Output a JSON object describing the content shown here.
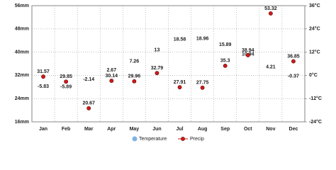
{
  "chart_data": {
    "type": "climate",
    "categories": [
      "Jan",
      "Feb",
      "Mar",
      "Apr",
      "May",
      "Jun",
      "Jul",
      "Aug",
      "Sep",
      "Oct",
      "Nov",
      "Dec"
    ],
    "series": [
      {
        "name": "Temperature",
        "color": "#7fb2e5",
        "axis": "y2",
        "values": [
          -5.83,
          -5.89,
          -2.14,
          2.67,
          7.26,
          13,
          18.58,
          18.96,
          15.89,
          10.94,
          4.21,
          -0.37
        ]
      },
      {
        "name": "Precip",
        "color": "#d11a1a",
        "values": [
          31.57,
          29.85,
          20.67,
          30.14,
          29.96,
          32.79,
          27.91,
          27.75,
          35.3,
          38.94,
          53.32,
          36.85
        ]
      }
    ],
    "ylim": [
      16,
      56
    ],
    "yticks": [
      {
        "value": 16,
        "label": "16mm"
      },
      {
        "value": 24,
        "label": "24mm"
      },
      {
        "value": 32,
        "label": "32mm"
      },
      {
        "value": 40,
        "label": "40mm"
      },
      {
        "value": 48,
        "label": "48mm"
      },
      {
        "value": 56,
        "label": "56mm"
      }
    ],
    "y2lim": [
      -24,
      36
    ],
    "y2ticks": [
      {
        "value": -24,
        "label": "-24°C"
      },
      {
        "value": -12,
        "label": "-12°C"
      },
      {
        "value": 0,
        "label": "0°C"
      },
      {
        "value": 12,
        "label": "12°C"
      },
      {
        "value": 24,
        "label": "24°C"
      },
      {
        "value": 36,
        "label": "36°C"
      }
    ],
    "grid": true
  }
}
